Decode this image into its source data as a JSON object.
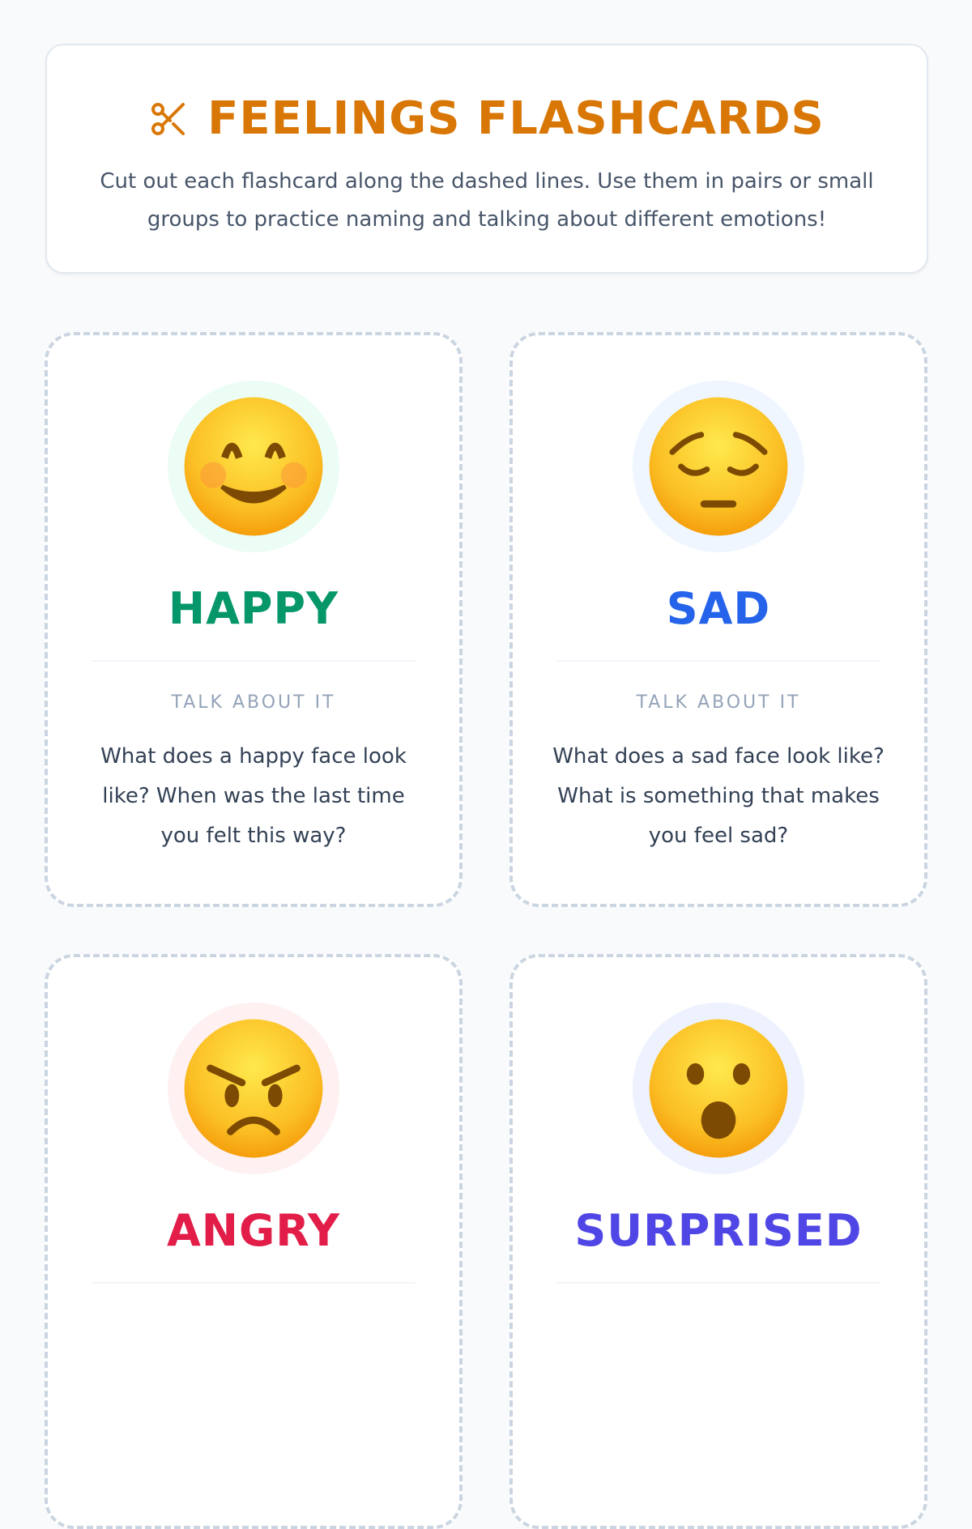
{
  "header": {
    "title": "FEELINGS FLASHCARDS",
    "icon": "scissors-icon",
    "subtitle": "Cut out each flashcard along the dashed lines. Use them in pairs or small groups to practice naming and talking about different emotions!"
  },
  "colors": {
    "title": "#d97706",
    "happy": "#059669",
    "sad": "#2563eb",
    "angry": "#e11d48",
    "surprised": "#4f46e5"
  },
  "cards": [
    {
      "emotion": "HAPPY",
      "icon": "smiling-face-icon",
      "label": "TALK ABOUT IT",
      "prompt": "What does a happy face look like? When was the last time you felt this way?"
    },
    {
      "emotion": "SAD",
      "icon": "pensive-face-icon",
      "label": "TALK ABOUT IT",
      "prompt": "What does a sad face look like? What is something that makes you feel sad?"
    },
    {
      "emotion": "ANGRY",
      "icon": "angry-face-icon",
      "label": "",
      "prompt": ""
    },
    {
      "emotion": "SURPRISED",
      "icon": "surprised-face-icon",
      "label": "",
      "prompt": ""
    }
  ]
}
